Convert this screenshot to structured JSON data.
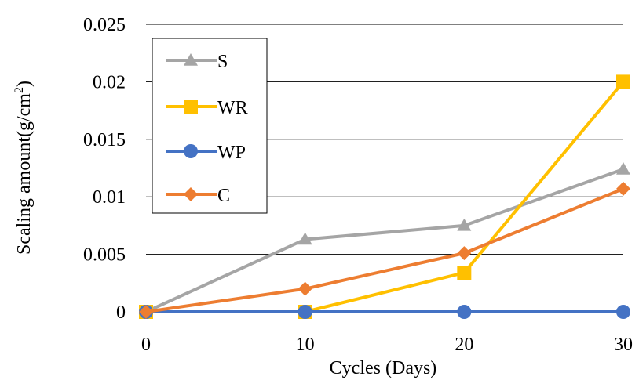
{
  "chart_data": {
    "type": "line",
    "x": [
      0,
      10,
      20,
      30
    ],
    "xticks": [
      "0",
      "10",
      "20",
      "30"
    ],
    "yticks": [
      "0",
      "0.005",
      "0.01",
      "0.015",
      "0.02",
      "0.025"
    ],
    "ylim": [
      0,
      0.025
    ],
    "xlabel": "Cycles (Days)",
    "ylabel_main": "Scaling amount(g/cm",
    "ylabel_sup": "2",
    "ylabel_close": ")",
    "grid": "horizontal",
    "legend_position": "top-left",
    "series": [
      {
        "name": "S",
        "color": "#A5A5A5",
        "marker": "triangle",
        "values": [
          0,
          0.0063,
          0.0075,
          0.0124
        ]
      },
      {
        "name": "WR",
        "color": "#FFC000",
        "marker": "square",
        "values": [
          0,
          0,
          0.0034,
          0.02
        ]
      },
      {
        "name": "WP",
        "color": "#4472C4",
        "marker": "circle",
        "values": [
          0,
          0,
          0,
          0
        ]
      },
      {
        "name": "C",
        "color": "#ED7D31",
        "marker": "diamond",
        "values": [
          0,
          0.002,
          0.0051,
          0.0107
        ]
      }
    ]
  }
}
